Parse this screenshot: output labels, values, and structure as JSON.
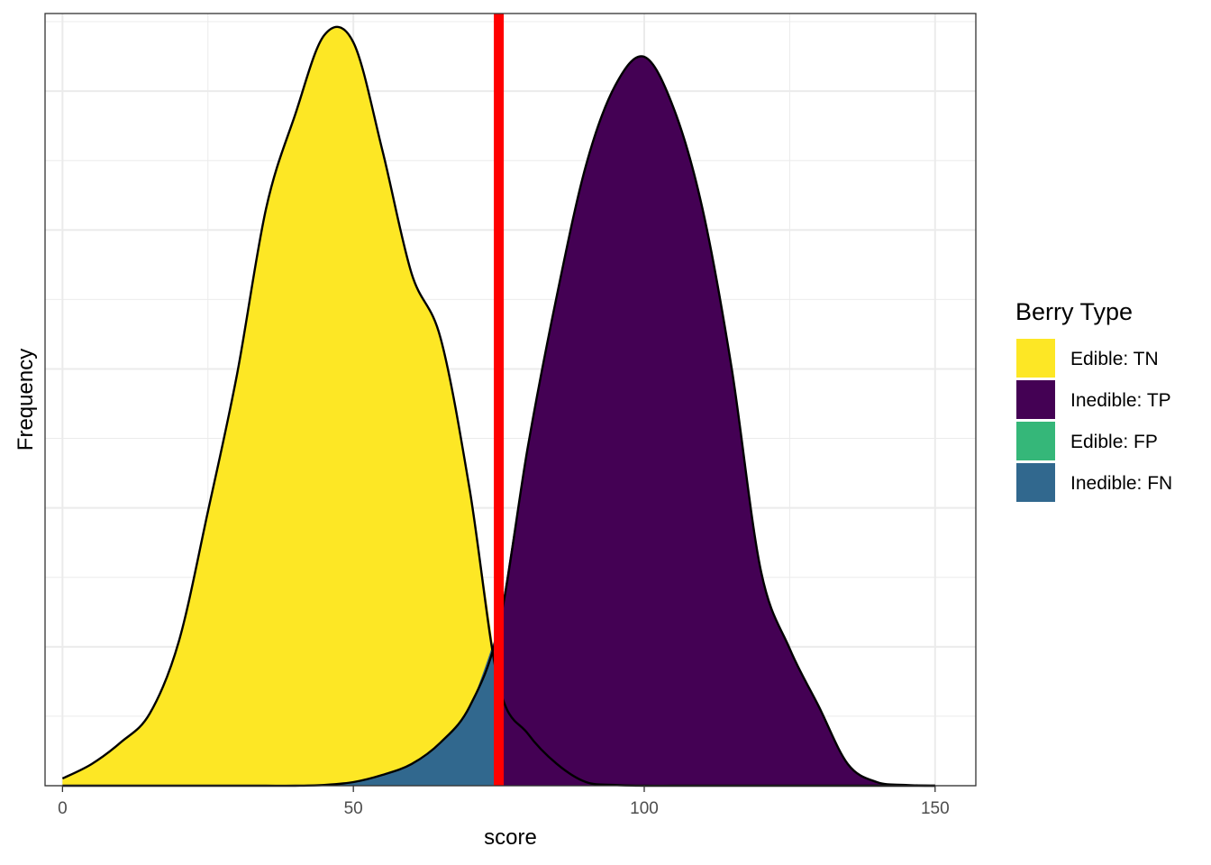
{
  "chart_data": {
    "type": "area",
    "xlabel": "score",
    "ylabel": "Frequency",
    "xlim": [
      -3,
      157
    ],
    "ylim": [
      0,
      1.07
    ],
    "x_ticks": [
      "0",
      "50",
      "100",
      "150"
    ],
    "x_tick_values": [
      0,
      50,
      100,
      150
    ],
    "grid": true,
    "threshold": 75,
    "threshold_color": "#ff0000",
    "legend": {
      "title": "Berry Type",
      "position": "right",
      "entries": [
        {
          "label": "Edible: TN",
          "color": "#fde725"
        },
        {
          "label": "Inedible: TP",
          "color": "#440154"
        },
        {
          "label": "Edible: FP",
          "color": "#35b779"
        },
        {
          "label": "Inedible: FN",
          "color": "#31688e"
        }
      ]
    },
    "series": [
      {
        "name": "Edible",
        "x": [
          0,
          5,
          10,
          15,
          20,
          25,
          30,
          35,
          40,
          45,
          50,
          55,
          60,
          65,
          70,
          75,
          80,
          85,
          90,
          95,
          100,
          105,
          110,
          115,
          120,
          125,
          130,
          135,
          140,
          145,
          150
        ],
        "values": [
          0.01,
          0.03,
          0.06,
          0.1,
          0.2,
          0.38,
          0.57,
          0.8,
          0.93,
          1.04,
          1.03,
          0.88,
          0.71,
          0.62,
          0.41,
          0.14,
          0.072,
          0.03,
          0.005,
          0.001,
          0,
          0,
          0,
          0,
          0,
          0,
          0,
          0,
          0,
          0,
          0
        ]
      },
      {
        "name": "Inedible",
        "x": [
          0,
          5,
          10,
          15,
          20,
          25,
          30,
          35,
          40,
          45,
          50,
          55,
          60,
          65,
          70,
          75,
          80,
          85,
          90,
          95,
          100,
          105,
          110,
          115,
          120,
          125,
          130,
          135,
          140,
          145,
          150
        ],
        "values": [
          0,
          0,
          0,
          0,
          0,
          0,
          0,
          0,
          0,
          0.001,
          0.005,
          0.015,
          0.03,
          0.06,
          0.11,
          0.22,
          0.47,
          0.68,
          0.86,
          0.97,
          1.01,
          0.94,
          0.8,
          0.58,
          0.3,
          0.19,
          0.11,
          0.03,
          0.005,
          0.001,
          0
        ]
      }
    ]
  }
}
